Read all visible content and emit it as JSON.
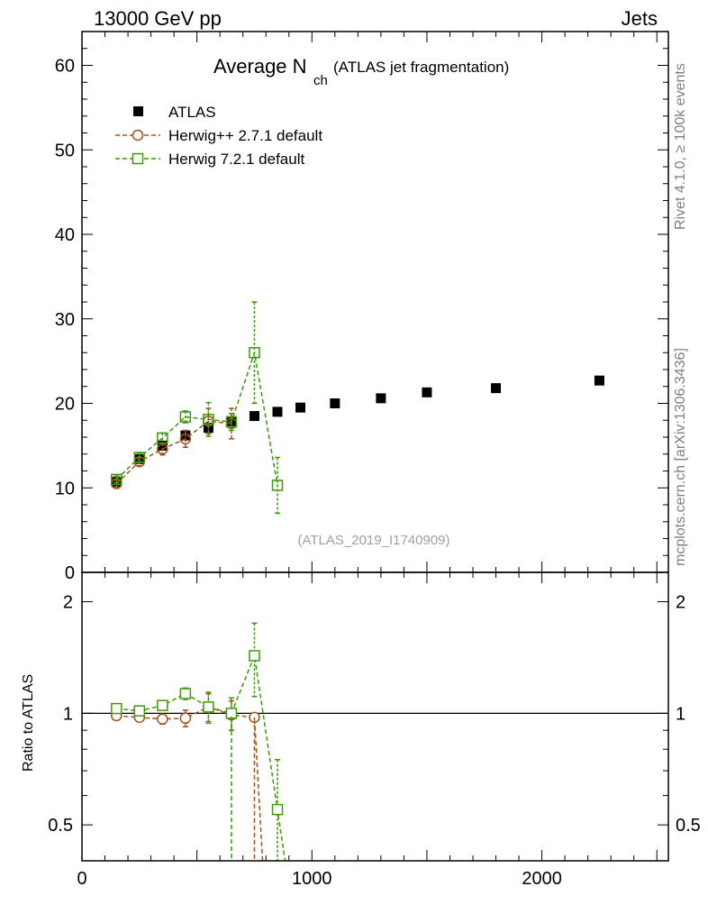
{
  "header": {
    "left": "13000 GeV pp",
    "right": "Jets"
  },
  "side_labels": {
    "rivet": "Rivet 4.1.0, ≥ 100k events",
    "mcplots": "mcplots.cern.ch [arXiv:1306.3436]"
  },
  "analysis_id": "(ATLAS_2019_I1740909)",
  "colors": {
    "atlas": "#000000",
    "herwigpp": "#a0521a",
    "herwig7": "#3a9a08",
    "ref": "#000000"
  },
  "chart_data": [
    {
      "type": "scatter",
      "title_main": "Average N",
      "title_sub": "ch",
      "title_suffix": "(ATLAS jet fragmentation)",
      "xlabel": "",
      "ylabel": "",
      "xlim": [
        0,
        2550
      ],
      "ylim": [
        0,
        64
      ],
      "yticks": [
        0,
        10,
        20,
        30,
        40,
        50,
        60
      ],
      "legend_placement": "top-left",
      "series": [
        {
          "name": "ATLAS",
          "marker": "filled-square",
          "color_key": "atlas",
          "x": [
            150,
            250,
            350,
            450,
            550,
            650,
            750,
            850,
            950,
            1100,
            1300,
            1500,
            1800,
            2250
          ],
          "y": [
            10.7,
            13.4,
            15.0,
            16.2,
            17.1,
            17.9,
            18.5,
            19.0,
            19.5,
            20.0,
            20.6,
            21.3,
            21.8,
            22.7
          ],
          "err": [
            0.3,
            0.3,
            0.3,
            0.3,
            0.3,
            0.3,
            0.3,
            0.3,
            0.3,
            0.3,
            0.3,
            0.3,
            0.3,
            0.3
          ]
        },
        {
          "name": "Herwig++ 2.7.1 default",
          "marker": "open-circle",
          "color_key": "herwigpp",
          "x": [
            150,
            250,
            350,
            450,
            550,
            650
          ],
          "y": [
            10.5,
            13.1,
            14.6,
            15.8,
            17.9,
            17.6
          ],
          "err": [
            0.4,
            0.5,
            0.7,
            1.0,
            1.5,
            1.8
          ]
        },
        {
          "name": "Herwig 7.2.1 default",
          "marker": "open-square",
          "color_key": "herwig7",
          "x": [
            150,
            250,
            350,
            450,
            550,
            650,
            750,
            850
          ],
          "y": [
            11.0,
            13.6,
            15.9,
            18.4,
            18.1,
            17.8,
            26.0,
            10.3
          ],
          "err": [
            0.4,
            0.5,
            0.6,
            0.7,
            2.0,
            1.0,
            6.0,
            3.3
          ]
        }
      ]
    },
    {
      "type": "scatter",
      "title": "",
      "xlabel": "",
      "ylabel": "Ratio to ATLAS",
      "scale": "log",
      "xlim": [
        0,
        2550
      ],
      "ylim": [
        0.4,
        2.4
      ],
      "xticks": [
        0,
        1000,
        2000
      ],
      "yticks": [
        0.5,
        1,
        2
      ],
      "reference_line": 1,
      "series": [
        {
          "name": "Herwig++ 2.7.1 default",
          "color_key": "herwigpp",
          "marker": "open-circle",
          "x": [
            150,
            250,
            350,
            450,
            550,
            650,
            750
          ],
          "y": [
            0.985,
            0.975,
            0.965,
            0.97,
            1.04,
            0.99,
            0.975
          ],
          "err": [
            0.02,
            0.025,
            0.03,
            0.05,
            0.09,
            0.09,
            0
          ],
          "drop_to_x": [
            790,
            820
          ]
        },
        {
          "name": "Herwig 7.2.1 default",
          "color_key": "herwig7",
          "marker": "open-square",
          "x": [
            150,
            250,
            350,
            450,
            550,
            650,
            750,
            850
          ],
          "y": [
            1.03,
            1.015,
            1.05,
            1.13,
            1.04,
            1.0,
            1.43,
            0.55
          ],
          "err": [
            0.02,
            0.02,
            0.03,
            0.04,
            0.1,
            0.1,
            0.32,
            0.2
          ],
          "drop_to_x": [
            895
          ]
        }
      ]
    }
  ]
}
